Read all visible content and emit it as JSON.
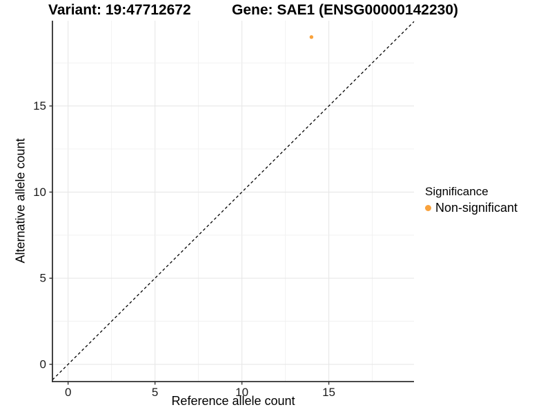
{
  "chart_data": {
    "type": "scatter",
    "title_left": "Variant: 19:47712672",
    "title_right": "Gene: SAE1 (ENSG00000142230)",
    "xlabel": "Reference allele count",
    "ylabel": "Alternative allele count",
    "xlim": [
      -0.9,
      19.9
    ],
    "ylim": [
      -1.0,
      19.95
    ],
    "xticks": [
      0,
      5,
      10,
      15
    ],
    "yticks": [
      0,
      5,
      10,
      15
    ],
    "minor_tick_step": 2.5,
    "grid": "major and minor gridlines, light grey on white",
    "reference_line": {
      "type": "identity y=x",
      "style": "dashed",
      "color": "#000000"
    },
    "points": [
      {
        "x": 14,
        "y": 19,
        "series": "Non-significant",
        "color": "#F9A23C"
      }
    ],
    "legend": {
      "title": "Significance",
      "position": "right",
      "items": [
        {
          "label": "Non-significant",
          "color": "#F9A23C"
        }
      ]
    }
  },
  "colors": {
    "background": "#FFFFFF",
    "grid_major": "#E7E7E7",
    "grid_minor": "#F0F0F0",
    "axis": "#2E2E2E",
    "tick_text": "#1A1A1A",
    "point": "#F9A23C"
  }
}
